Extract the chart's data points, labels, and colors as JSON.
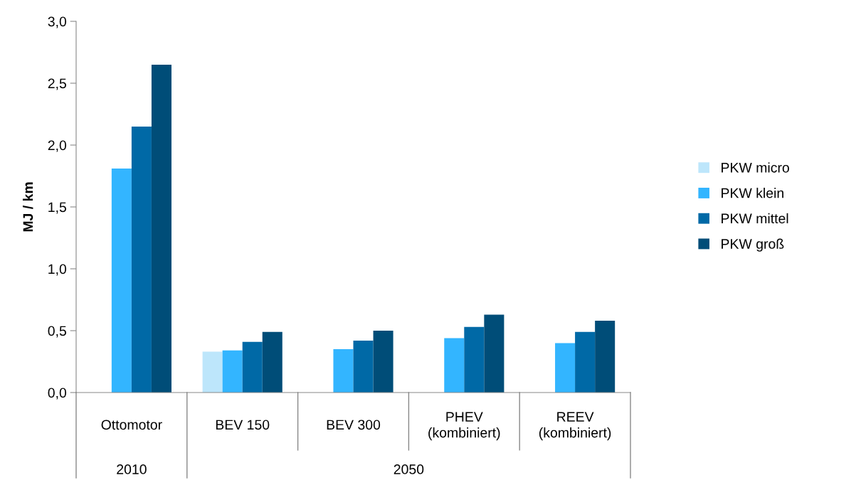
{
  "chart_data": {
    "type": "bar",
    "ylabel": "MJ / km",
    "categories": [
      "Ottomotor",
      "BEV 150",
      "BEV 300",
      "PHEV\n(kombiniert)",
      "REEV\n(kombiniert)"
    ],
    "series": [
      {
        "name": "PKW micro",
        "color": "#bde6fb",
        "values": [
          null,
          0.33,
          null,
          null,
          null
        ]
      },
      {
        "name": "PKW klein",
        "color": "#33b5ff",
        "values": [
          1.81,
          0.34,
          0.35,
          0.44,
          0.4
        ]
      },
      {
        "name": "PKW mittel",
        "color": "#0069a6",
        "values": [
          2.15,
          0.41,
          0.42,
          0.53,
          0.49
        ]
      },
      {
        "name": "PKW groß",
        "color": "#004d78",
        "values": [
          2.65,
          0.49,
          0.5,
          0.63,
          0.58
        ]
      }
    ],
    "annotations": [
      "2010",
      "2050"
    ],
    "ylim": [
      0,
      3.0
    ],
    "yticks": [
      {
        "value": 0,
        "label": "0,0"
      },
      {
        "value": 0.5,
        "label": "0,5"
      },
      {
        "value": 1.0,
        "label": "1,0"
      },
      {
        "value": 1.5,
        "label": "1,5"
      },
      {
        "value": 2.0,
        "label": "2,0"
      },
      {
        "value": 2.5,
        "label": "2,5"
      },
      {
        "value": 3.0,
        "label": "3,0"
      }
    ],
    "grid": false,
    "legend": "right"
  }
}
